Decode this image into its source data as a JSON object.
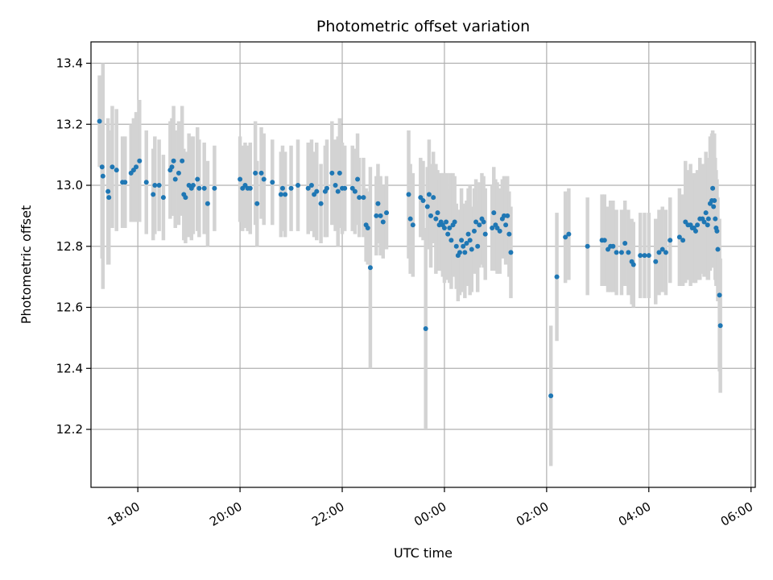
{
  "chart_data": {
    "type": "scatter",
    "title": "Photometric offset variation",
    "xlabel": "UTC time",
    "ylabel": "Photometric offset",
    "xlim": [
      "17:05",
      "06:05"
    ],
    "ylim": [
      12.01,
      13.47
    ],
    "x_ticks": [
      "18:00",
      "20:00",
      "22:00",
      "00:00",
      "02:00",
      "04:00",
      "06:00"
    ],
    "y_ticks": [
      "12.2",
      "12.4",
      "12.6",
      "12.8",
      "13.0",
      "13.2",
      "13.4"
    ],
    "grid": true,
    "series_color": "#1f77b4",
    "errorbar_color": "#d3d3d3",
    "series": [
      {
        "points": [
          {
            "t": "17:15",
            "y": 13.21,
            "err": 0.15
          },
          {
            "t": "17:18",
            "y": 13.06,
            "err": 0.3
          },
          {
            "t": "17:19",
            "y": 13.03,
            "err": 0.37
          },
          {
            "t": "17:25",
            "y": 12.98,
            "err": 0.24
          },
          {
            "t": "17:26",
            "y": 12.96,
            "err": 0.22
          },
          {
            "t": "17:30",
            "y": 13.06,
            "err": 0.2
          },
          {
            "t": "17:35",
            "y": 13.05,
            "err": 0.2
          },
          {
            "t": "17:42",
            "y": 13.01,
            "err": 0.15
          },
          {
            "t": "17:45",
            "y": 13.01,
            "err": 0.15
          },
          {
            "t": "17:52",
            "y": 13.04,
            "err": 0.16
          },
          {
            "t": "17:55",
            "y": 13.05,
            "err": 0.17
          },
          {
            "t": "17:58",
            "y": 13.06,
            "err": 0.18
          },
          {
            "t": "18:02",
            "y": 13.08,
            "err": 0.2
          },
          {
            "t": "18:10",
            "y": 13.01,
            "err": 0.17
          },
          {
            "t": "18:18",
            "y": 12.97,
            "err": 0.15
          },
          {
            "t": "18:20",
            "y": 13.0,
            "err": 0.16
          },
          {
            "t": "18:25",
            "y": 13.0,
            "err": 0.15
          },
          {
            "t": "18:30",
            "y": 12.96,
            "err": 0.14
          },
          {
            "t": "18:38",
            "y": 13.05,
            "err": 0.16
          },
          {
            "t": "18:40",
            "y": 13.06,
            "err": 0.16
          },
          {
            "t": "18:42",
            "y": 13.08,
            "err": 0.18
          },
          {
            "t": "18:44",
            "y": 13.02,
            "err": 0.16
          },
          {
            "t": "18:48",
            "y": 13.04,
            "err": 0.17
          },
          {
            "t": "18:52",
            "y": 13.08,
            "err": 0.18
          },
          {
            "t": "18:54",
            "y": 12.97,
            "err": 0.15
          },
          {
            "t": "18:56",
            "y": 12.96,
            "err": 0.15
          },
          {
            "t": "19:00",
            "y": 13.0,
            "err": 0.17
          },
          {
            "t": "19:03",
            "y": 12.99,
            "err": 0.17
          },
          {
            "t": "19:05",
            "y": 13.0,
            "err": 0.16
          },
          {
            "t": "19:10",
            "y": 13.02,
            "err": 0.17
          },
          {
            "t": "19:12",
            "y": 12.99,
            "err": 0.16
          },
          {
            "t": "19:18",
            "y": 12.99,
            "err": 0.15
          },
          {
            "t": "19:22",
            "y": 12.94,
            "err": 0.14
          },
          {
            "t": "19:30",
            "y": 12.99,
            "err": 0.14
          },
          {
            "t": "20:00",
            "y": 13.02,
            "err": 0.14
          },
          {
            "t": "20:03",
            "y": 12.99,
            "err": 0.14
          },
          {
            "t": "20:06",
            "y": 13.0,
            "err": 0.14
          },
          {
            "t": "20:09",
            "y": 12.99,
            "err": 0.14
          },
          {
            "t": "20:12",
            "y": 12.99,
            "err": 0.15
          },
          {
            "t": "20:18",
            "y": 13.04,
            "err": 0.17
          },
          {
            "t": "20:20",
            "y": 12.94,
            "err": 0.14
          },
          {
            "t": "20:25",
            "y": 13.04,
            "err": 0.15
          },
          {
            "t": "20:28",
            "y": 13.02,
            "err": 0.15
          },
          {
            "t": "20:38",
            "y": 13.01,
            "err": 0.14
          },
          {
            "t": "20:48",
            "y": 12.97,
            "err": 0.14
          },
          {
            "t": "20:50",
            "y": 12.99,
            "err": 0.14
          },
          {
            "t": "20:53",
            "y": 12.97,
            "err": 0.14
          },
          {
            "t": "21:00",
            "y": 12.99,
            "err": 0.14
          },
          {
            "t": "21:08",
            "y": 13.0,
            "err": 0.15
          },
          {
            "t": "21:20",
            "y": 12.99,
            "err": 0.15
          },
          {
            "t": "21:24",
            "y": 13.0,
            "err": 0.15
          },
          {
            "t": "21:27",
            "y": 12.97,
            "err": 0.14
          },
          {
            "t": "21:30",
            "y": 12.98,
            "err": 0.16
          },
          {
            "t": "21:35",
            "y": 12.94,
            "err": 0.13
          },
          {
            "t": "21:40",
            "y": 12.98,
            "err": 0.15
          },
          {
            "t": "21:42",
            "y": 12.99,
            "err": 0.16
          },
          {
            "t": "21:48",
            "y": 13.04,
            "err": 0.17
          },
          {
            "t": "21:52",
            "y": 13.0,
            "err": 0.15
          },
          {
            "t": "21:55",
            "y": 12.98,
            "err": 0.18
          },
          {
            "t": "21:57",
            "y": 13.04,
            "err": 0.18
          },
          {
            "t": "22:00",
            "y": 12.99,
            "err": 0.15
          },
          {
            "t": "22:03",
            "y": 12.99,
            "err": 0.14
          },
          {
            "t": "22:12",
            "y": 12.99,
            "err": 0.14
          },
          {
            "t": "22:15",
            "y": 12.98,
            "err": 0.14
          },
          {
            "t": "22:18",
            "y": 13.02,
            "err": 0.15
          },
          {
            "t": "22:20",
            "y": 12.96,
            "err": 0.13
          },
          {
            "t": "22:25",
            "y": 12.96,
            "err": 0.13
          },
          {
            "t": "22:28",
            "y": 12.87,
            "err": 0.12
          },
          {
            "t": "22:30",
            "y": 12.86,
            "err": 0.12
          },
          {
            "t": "22:33",
            "y": 12.73,
            "err": 0.33
          },
          {
            "t": "22:40",
            "y": 12.9,
            "err": 0.13
          },
          {
            "t": "22:42",
            "y": 12.94,
            "err": 0.13
          },
          {
            "t": "22:45",
            "y": 12.9,
            "err": 0.13
          },
          {
            "t": "22:48",
            "y": 12.88,
            "err": 0.12
          },
          {
            "t": "22:52",
            "y": 12.91,
            "err": 0.12
          },
          {
            "t": "23:18",
            "y": 12.97,
            "err": 0.21
          },
          {
            "t": "23:20",
            "y": 12.89,
            "err": 0.18
          },
          {
            "t": "23:23",
            "y": 12.87,
            "err": 0.17
          },
          {
            "t": "23:32",
            "y": 12.96,
            "err": 0.13
          },
          {
            "t": "23:35",
            "y": 12.95,
            "err": 0.13
          },
          {
            "t": "23:38",
            "y": 12.53,
            "err": 0.33
          },
          {
            "t": "23:40",
            "y": 12.93,
            "err": 0.13
          },
          {
            "t": "23:42",
            "y": 12.97,
            "err": 0.18
          },
          {
            "t": "23:44",
            "y": 12.9,
            "err": 0.17
          },
          {
            "t": "23:47",
            "y": 12.96,
            "err": 0.15
          },
          {
            "t": "23:50",
            "y": 12.89,
            "err": 0.18
          },
          {
            "t": "23:52",
            "y": 12.91,
            "err": 0.14
          },
          {
            "t": "23:54",
            "y": 12.87,
            "err": 0.15
          },
          {
            "t": "23:56",
            "y": 12.88,
            "err": 0.16
          },
          {
            "t": "23:58",
            "y": 12.87,
            "err": 0.17
          },
          {
            "t": "00:00",
            "y": 12.86,
            "err": 0.18
          },
          {
            "t": "00:02",
            "y": 12.88,
            "err": 0.16
          },
          {
            "t": "00:04",
            "y": 12.84,
            "err": 0.15
          },
          {
            "t": "00:06",
            "y": 12.86,
            "err": 0.18
          },
          {
            "t": "00:08",
            "y": 12.82,
            "err": 0.16
          },
          {
            "t": "00:10",
            "y": 12.87,
            "err": 0.17
          },
          {
            "t": "00:12",
            "y": 12.88,
            "err": 0.15
          },
          {
            "t": "00:14",
            "y": 12.8,
            "err": 0.14
          },
          {
            "t": "00:16",
            "y": 12.77,
            "err": 0.15
          },
          {
            "t": "00:18",
            "y": 12.78,
            "err": 0.14
          },
          {
            "t": "00:20",
            "y": 12.82,
            "err": 0.17
          },
          {
            "t": "00:22",
            "y": 12.8,
            "err": 0.14
          },
          {
            "t": "00:24",
            "y": 12.78,
            "err": 0.15
          },
          {
            "t": "00:26",
            "y": 12.81,
            "err": 0.14
          },
          {
            "t": "00:28",
            "y": 12.84,
            "err": 0.15
          },
          {
            "t": "00:30",
            "y": 12.82,
            "err": 0.18
          },
          {
            "t": "00:32",
            "y": 12.79,
            "err": 0.14
          },
          {
            "t": "00:35",
            "y": 12.85,
            "err": 0.14
          },
          {
            "t": "00:37",
            "y": 12.88,
            "err": 0.14
          },
          {
            "t": "00:39",
            "y": 12.8,
            "err": 0.15
          },
          {
            "t": "00:41",
            "y": 12.87,
            "err": 0.14
          },
          {
            "t": "00:44",
            "y": 12.89,
            "err": 0.15
          },
          {
            "t": "00:46",
            "y": 12.88,
            "err": 0.15
          },
          {
            "t": "00:48",
            "y": 12.84,
            "err": 0.15
          },
          {
            "t": "00:56",
            "y": 12.86,
            "err": 0.14
          },
          {
            "t": "00:58",
            "y": 12.91,
            "err": 0.15
          },
          {
            "t": "01:00",
            "y": 12.87,
            "err": 0.15
          },
          {
            "t": "01:02",
            "y": 12.86,
            "err": 0.15
          },
          {
            "t": "01:05",
            "y": 12.85,
            "err": 0.14
          },
          {
            "t": "01:08",
            "y": 12.89,
            "err": 0.13
          },
          {
            "t": "01:10",
            "y": 12.9,
            "err": 0.13
          },
          {
            "t": "01:12",
            "y": 12.87,
            "err": 0.13
          },
          {
            "t": "01:14",
            "y": 12.9,
            "err": 0.13
          },
          {
            "t": "01:16",
            "y": 12.84,
            "err": 0.14
          },
          {
            "t": "01:18",
            "y": 12.78,
            "err": 0.15
          },
          {
            "t": "02:05",
            "y": 12.31,
            "err": 0.23
          },
          {
            "t": "02:12",
            "y": 12.7,
            "err": 0.21
          },
          {
            "t": "02:22",
            "y": 12.83,
            "err": 0.15
          },
          {
            "t": "02:26",
            "y": 12.84,
            "err": 0.15
          },
          {
            "t": "02:48",
            "y": 12.8,
            "err": 0.16
          },
          {
            "t": "03:05",
            "y": 12.82,
            "err": 0.15
          },
          {
            "t": "03:08",
            "y": 12.82,
            "err": 0.15
          },
          {
            "t": "03:12",
            "y": 12.79,
            "err": 0.14
          },
          {
            "t": "03:15",
            "y": 12.8,
            "err": 0.15
          },
          {
            "t": "03:18",
            "y": 12.8,
            "err": 0.15
          },
          {
            "t": "03:22",
            "y": 12.78,
            "err": 0.14
          },
          {
            "t": "03:28",
            "y": 12.78,
            "err": 0.14
          },
          {
            "t": "03:32",
            "y": 12.81,
            "err": 0.14
          },
          {
            "t": "03:36",
            "y": 12.78,
            "err": 0.14
          },
          {
            "t": "03:40",
            "y": 12.75,
            "err": 0.14
          },
          {
            "t": "03:42",
            "y": 12.74,
            "err": 0.14
          },
          {
            "t": "03:50",
            "y": 12.77,
            "err": 0.14
          },
          {
            "t": "03:55",
            "y": 12.77,
            "err": 0.14
          },
          {
            "t": "04:00",
            "y": 12.77,
            "err": 0.14
          },
          {
            "t": "04:08",
            "y": 12.75,
            "err": 0.14
          },
          {
            "t": "04:12",
            "y": 12.78,
            "err": 0.14
          },
          {
            "t": "04:16",
            "y": 12.79,
            "err": 0.14
          },
          {
            "t": "04:20",
            "y": 12.78,
            "err": 0.14
          },
          {
            "t": "04:25",
            "y": 12.82,
            "err": 0.14
          },
          {
            "t": "04:36",
            "y": 12.83,
            "err": 0.16
          },
          {
            "t": "04:40",
            "y": 12.82,
            "err": 0.15
          },
          {
            "t": "04:43",
            "y": 12.88,
            "err": 0.2
          },
          {
            "t": "04:46",
            "y": 12.87,
            "err": 0.18
          },
          {
            "t": "04:49",
            "y": 12.87,
            "err": 0.2
          },
          {
            "t": "04:51",
            "y": 12.86,
            "err": 0.17
          },
          {
            "t": "04:53",
            "y": 12.86,
            "err": 0.18
          },
          {
            "t": "04:55",
            "y": 12.85,
            "err": 0.17
          },
          {
            "t": "04:57",
            "y": 12.87,
            "err": 0.18
          },
          {
            "t": "05:00",
            "y": 12.89,
            "err": 0.2
          },
          {
            "t": "05:03",
            "y": 12.89,
            "err": 0.18
          },
          {
            "t": "05:05",
            "y": 12.88,
            "err": 0.18
          },
          {
            "t": "05:07",
            "y": 12.91,
            "err": 0.2
          },
          {
            "t": "05:09",
            "y": 12.87,
            "err": 0.18
          },
          {
            "t": "05:10",
            "y": 12.89,
            "err": 0.2
          },
          {
            "t": "05:12",
            "y": 12.94,
            "err": 0.22
          },
          {
            "t": "05:14",
            "y": 12.95,
            "err": 0.22
          },
          {
            "t": "05:15",
            "y": 12.99,
            "err": 0.19
          },
          {
            "t": "05:16",
            "y": 12.93,
            "err": 0.2
          },
          {
            "t": "05:17",
            "y": 12.95,
            "err": 0.22
          },
          {
            "t": "05:18",
            "y": 12.89,
            "err": 0.2
          },
          {
            "t": "05:19",
            "y": 12.86,
            "err": 0.19
          },
          {
            "t": "05:20",
            "y": 12.85,
            "err": 0.17
          },
          {
            "t": "05:21",
            "y": 12.79,
            "err": 0.17
          },
          {
            "t": "05:23",
            "y": 12.64,
            "err": 0.25
          },
          {
            "t": "05:24",
            "y": 12.54,
            "err": 0.22
          }
        ]
      }
    ]
  }
}
